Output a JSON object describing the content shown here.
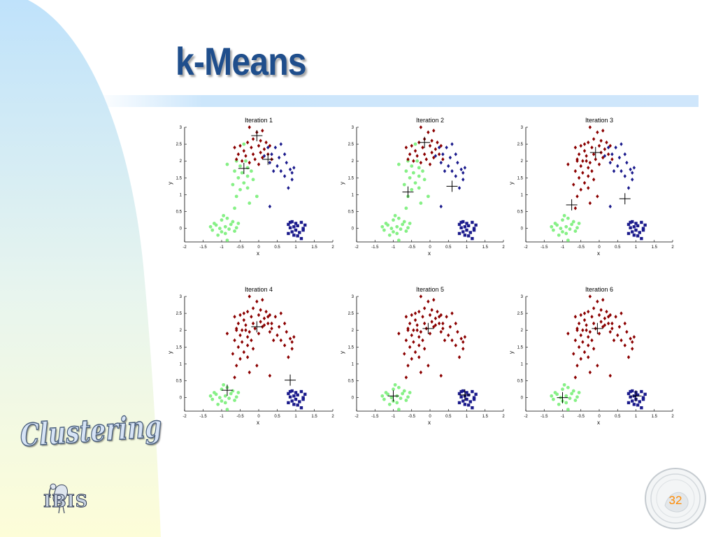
{
  "slide": {
    "title": "k-Means",
    "side_label": "Clustering",
    "logo_text": "IBIS",
    "page_number": "32"
  },
  "colors": {
    "cluster_red": "#8b0000",
    "cluster_blue": "#1a1a8c",
    "cluster_green": "#86f086",
    "title": "#1f4e8c",
    "page_number": "#ff8a00",
    "background_left_gradient": [
      "#c8e6fb",
      "#fdfde0"
    ]
  },
  "icons": [
    "bird-logo-icon",
    "university-seal-icon",
    "centroid-cross-icon"
  ],
  "chart_data": [
    {
      "type": "scatter",
      "title": "Iteration 1",
      "xlabel": "x",
      "ylabel": "y",
      "xlim": [
        -2,
        2
      ],
      "ylim": [
        -0.4,
        3
      ],
      "xticks": [
        "-2",
        "-1.5",
        "-1",
        "-0.5",
        "0",
        "0.5",
        "1",
        "1.5",
        "2"
      ],
      "yticks": [
        "0",
        "0.5",
        "1",
        "1.5",
        "2",
        "2.5",
        "3"
      ],
      "red_groups": [
        "top"
      ],
      "blue_groups": [
        "right",
        "square"
      ],
      "green_groups": [
        "left",
        "bottomleft"
      ],
      "centroids": [
        [
          -0.05,
          2.75
        ],
        [
          0.25,
          2.05
        ],
        [
          -0.4,
          1.78
        ]
      ]
    },
    {
      "type": "scatter",
      "title": "Iteration 2",
      "xlabel": "x",
      "ylabel": "y",
      "xlim": [
        -2,
        2
      ],
      "ylim": [
        -0.4,
        3
      ],
      "xticks": [
        "-2",
        "-1.5",
        "-1",
        "-0.5",
        "0",
        "0.5",
        "1",
        "1.5",
        "2"
      ],
      "yticks": [
        "0",
        "0.5",
        "1",
        "1.5",
        "2",
        "2.5",
        "3"
      ],
      "red_groups": [
        "top"
      ],
      "blue_groups": [
        "right",
        "square"
      ],
      "green_groups": [
        "left",
        "bottomleft"
      ],
      "centroids": [
        [
          -0.15,
          2.55
        ],
        [
          -0.6,
          1.08
        ],
        [
          0.6,
          1.25
        ]
      ]
    },
    {
      "type": "scatter",
      "title": "Iteration 3",
      "xlabel": "x",
      "ylabel": "y",
      "xlim": [
        -2,
        2
      ],
      "ylim": [
        -0.4,
        3
      ],
      "xticks": [
        "-2",
        "-1.5",
        "-1",
        "-0.5",
        "0",
        "0.5",
        "1",
        "1.5",
        "2"
      ],
      "yticks": [
        "0",
        "0.5",
        "1",
        "1.5",
        "2",
        "2.5",
        "3"
      ],
      "red_groups": [
        "top",
        "left"
      ],
      "blue_groups": [
        "right",
        "square"
      ],
      "green_groups": [
        "bottomleft"
      ],
      "centroids": [
        [
          -0.1,
          2.25
        ],
        [
          -0.75,
          0.7
        ],
        [
          0.7,
          0.88
        ]
      ]
    },
    {
      "type": "scatter",
      "title": "Iteration 4",
      "xlabel": "x",
      "ylabel": "y",
      "xlim": [
        -2,
        2
      ],
      "ylim": [
        -0.4,
        3
      ],
      "xticks": [
        "-2",
        "-1.5",
        "-1",
        "-0.5",
        "0",
        "0.5",
        "1",
        "1.5",
        "2"
      ],
      "yticks": [
        "0",
        "0.5",
        "1",
        "1.5",
        "2",
        "2.5",
        "3"
      ],
      "red_groups": [
        "top",
        "left",
        "right"
      ],
      "blue_groups": [
        "square"
      ],
      "green_groups": [
        "bottomleft"
      ],
      "centroids": [
        [
          -0.05,
          2.1
        ],
        [
          -0.85,
          0.22
        ],
        [
          0.85,
          0.52
        ]
      ]
    },
    {
      "type": "scatter",
      "title": "Iteration 5",
      "xlabel": "x",
      "ylabel": "y",
      "xlim": [
        -2,
        2
      ],
      "ylim": [
        -0.4,
        3
      ],
      "xticks": [
        "-2",
        "-1.5",
        "-1",
        "-0.5",
        "0",
        "0.5",
        "1",
        "1.5",
        "2"
      ],
      "yticks": [
        "0",
        "0.5",
        "1",
        "1.5",
        "2",
        "2.5",
        "3"
      ],
      "red_groups": [
        "top",
        "left",
        "right"
      ],
      "blue_groups": [
        "square"
      ],
      "green_groups": [
        "bottomleft"
      ],
      "centroids": [
        [
          -0.05,
          2.05
        ],
        [
          -1.0,
          0.05
        ],
        [
          0.95,
          0.08
        ]
      ]
    },
    {
      "type": "scatter",
      "title": "Iteration 6",
      "xlabel": "x",
      "ylabel": "y",
      "xlim": [
        -2,
        2
      ],
      "ylim": [
        -0.4,
        3
      ],
      "xticks": [
        "-2",
        "-1.5",
        "-1",
        "-0.5",
        "0",
        "0.5",
        "1",
        "1.5",
        "2"
      ],
      "yticks": [
        "0",
        "0.5",
        "1",
        "1.5",
        "2",
        "2.5",
        "3"
      ],
      "red_groups": [
        "top",
        "left",
        "right"
      ],
      "blue_groups": [
        "square"
      ],
      "green_groups": [
        "bottomleft"
      ],
      "centroids": [
        [
          -0.05,
          2.05
        ],
        [
          -1.0,
          0.0
        ],
        [
          1.0,
          0.05
        ]
      ]
    }
  ],
  "point_groups": {
    "top": [
      [
        -0.3,
        2.55
      ],
      [
        -0.15,
        2.65
      ],
      [
        0.05,
        2.6
      ],
      [
        0.2,
        2.55
      ],
      [
        -0.05,
        2.85
      ],
      [
        0.1,
        2.9
      ],
      [
        -0.25,
        3.0
      ],
      [
        -0.5,
        2.45
      ],
      [
        -0.65,
        2.4
      ],
      [
        -0.4,
        2.3
      ],
      [
        -0.2,
        2.4
      ],
      [
        0.0,
        2.45
      ],
      [
        0.15,
        2.35
      ],
      [
        0.3,
        2.45
      ],
      [
        -0.35,
        2.15
      ],
      [
        -0.15,
        2.2
      ],
      [
        0.05,
        2.25
      ],
      [
        -0.55,
        2.2
      ],
      [
        0.25,
        2.2
      ],
      [
        -0.1,
        2.05
      ],
      [
        -0.45,
        2.0
      ],
      [
        0.1,
        2.1
      ],
      [
        -0.25,
        1.95
      ],
      [
        0.0,
        1.9
      ],
      [
        -0.6,
        2.05
      ],
      [
        0.35,
        2.05
      ]
    ],
    "left": [
      [
        -0.4,
        2.5
      ],
      [
        -0.6,
        2.0
      ],
      [
        -0.35,
        2.0
      ],
      [
        -0.5,
        1.85
      ],
      [
        -0.3,
        1.8
      ],
      [
        -0.65,
        1.7
      ],
      [
        -0.45,
        1.65
      ],
      [
        -0.2,
        1.7
      ],
      [
        -0.55,
        1.5
      ],
      [
        -0.3,
        1.55
      ],
      [
        -0.4,
        1.35
      ],
      [
        -0.15,
        1.45
      ],
      [
        -0.7,
        1.3
      ],
      [
        -0.5,
        1.15
      ],
      [
        -0.85,
        1.9
      ],
      [
        -0.3,
        1.2
      ],
      [
        -0.6,
        0.95
      ],
      [
        -0.05,
        0.95
      ],
      [
        -0.25,
        0.75
      ],
      [
        -0.65,
        0.6
      ]
    ],
    "right": [
      [
        0.25,
        2.4
      ],
      [
        0.45,
        2.4
      ],
      [
        0.6,
        2.5
      ],
      [
        0.15,
        2.15
      ],
      [
        0.35,
        2.2
      ],
      [
        0.55,
        2.1
      ],
      [
        0.7,
        2.2
      ],
      [
        0.3,
        1.95
      ],
      [
        0.5,
        1.85
      ],
      [
        0.75,
        1.95
      ],
      [
        0.6,
        1.7
      ],
      [
        0.85,
        1.75
      ],
      [
        0.4,
        1.7
      ],
      [
        0.95,
        1.8
      ],
      [
        0.7,
        1.55
      ],
      [
        0.9,
        1.45
      ],
      [
        0.8,
        1.2
      ],
      [
        0.3,
        0.65
      ],
      [
        0.9,
        1.65
      ]
    ],
    "square": [
      [
        0.8,
        0.12
      ],
      [
        0.9,
        0.2
      ],
      [
        1.0,
        0.15
      ],
      [
        1.15,
        0.18
      ],
      [
        1.25,
        0.1
      ],
      [
        0.85,
        0.02
      ],
      [
        0.95,
        0.05
      ],
      [
        1.05,
        0.08
      ],
      [
        1.2,
        0.0
      ],
      [
        0.9,
        -0.1
      ],
      [
        1.0,
        -0.05
      ],
      [
        1.1,
        -0.12
      ],
      [
        1.2,
        -0.05
      ],
      [
        0.8,
        -0.15
      ],
      [
        0.95,
        -0.2
      ],
      [
        1.05,
        -0.22
      ],
      [
        1.15,
        -0.3
      ],
      [
        0.85,
        0.18
      ]
    ],
    "bottomleft": [
      [
        -1.0,
        0.25
      ],
      [
        -0.85,
        0.3
      ],
      [
        -0.7,
        0.2
      ],
      [
        -1.15,
        0.1
      ],
      [
        -1.05,
        0.0
      ],
      [
        -0.9,
        0.05
      ],
      [
        -0.8,
        -0.02
      ],
      [
        -0.6,
        0.02
      ],
      [
        -1.25,
        -0.05
      ],
      [
        -1.0,
        -0.1
      ],
      [
        -0.9,
        -0.15
      ],
      [
        -0.75,
        0.12
      ],
      [
        -1.2,
        0.15
      ],
      [
        -0.95,
        0.38
      ],
      [
        -1.1,
        -0.2
      ],
      [
        -0.65,
        -0.08
      ],
      [
        -1.3,
        0.05
      ],
      [
        -0.85,
        -0.35
      ],
      [
        -0.55,
        0.15
      ]
    ]
  }
}
